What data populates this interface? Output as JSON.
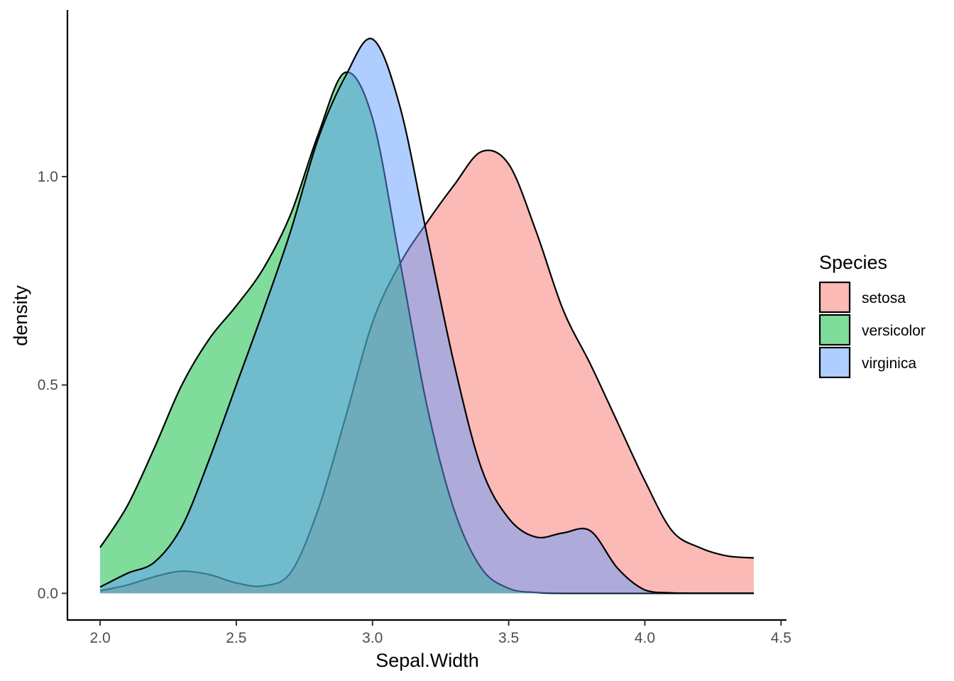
{
  "chart_data": {
    "type": "area",
    "subtype": "density",
    "title": "",
    "xlabel": "Sepal.Width",
    "ylabel": "density",
    "xlim": [
      1.88,
      4.52
    ],
    "ylim": [
      -0.064,
      1.4
    ],
    "x_ticks": [
      2.0,
      2.5,
      3.0,
      3.5,
      4.0,
      4.5
    ],
    "x_tick_labels": [
      "2.0",
      "2.5",
      "3.0",
      "3.5",
      "4.0",
      "4.5"
    ],
    "y_ticks": [
      0.0,
      0.5,
      1.0
    ],
    "y_tick_labels": [
      "0.0",
      "0.5",
      "1.0"
    ],
    "grid": false,
    "fill_opacity": 0.5,
    "legend": {
      "title": "Species",
      "position": "right"
    },
    "series": [
      {
        "name": "setosa",
        "color": "#F8766D",
        "points": [
          [
            2.0,
            0.006
          ],
          [
            2.1,
            0.02
          ],
          [
            2.2,
            0.04
          ],
          [
            2.3,
            0.053
          ],
          [
            2.4,
            0.045
          ],
          [
            2.5,
            0.025
          ],
          [
            2.6,
            0.018
          ],
          [
            2.7,
            0.05
          ],
          [
            2.8,
            0.2
          ],
          [
            2.9,
            0.42
          ],
          [
            3.0,
            0.65
          ],
          [
            3.1,
            0.79
          ],
          [
            3.2,
            0.89
          ],
          [
            3.3,
            0.98
          ],
          [
            3.4,
            1.06
          ],
          [
            3.5,
            1.03
          ],
          [
            3.6,
            0.87
          ],
          [
            3.7,
            0.68
          ],
          [
            3.8,
            0.55
          ],
          [
            3.9,
            0.41
          ],
          [
            4.0,
            0.27
          ],
          [
            4.1,
            0.15
          ],
          [
            4.2,
            0.11
          ],
          [
            4.3,
            0.09
          ],
          [
            4.4,
            0.085
          ]
        ]
      },
      {
        "name": "versicolor",
        "color": "#00BA38",
        "points": [
          [
            2.0,
            0.11
          ],
          [
            2.1,
            0.21
          ],
          [
            2.2,
            0.35
          ],
          [
            2.3,
            0.5
          ],
          [
            2.4,
            0.61
          ],
          [
            2.5,
            0.69
          ],
          [
            2.6,
            0.78
          ],
          [
            2.7,
            0.91
          ],
          [
            2.8,
            1.1
          ],
          [
            2.9,
            1.25
          ],
          [
            3.0,
            1.14
          ],
          [
            3.1,
            0.8
          ],
          [
            3.2,
            0.45
          ],
          [
            3.3,
            0.2
          ],
          [
            3.4,
            0.06
          ],
          [
            3.5,
            0.012
          ],
          [
            3.6,
            0.002
          ],
          [
            3.7,
            0.0
          ],
          [
            3.8,
            0.0
          ],
          [
            3.9,
            0.0
          ],
          [
            4.0,
            0.0
          ],
          [
            4.1,
            0.0
          ],
          [
            4.2,
            0.0
          ],
          [
            4.3,
            0.0
          ],
          [
            4.4,
            0.0
          ]
        ]
      },
      {
        "name": "virginica",
        "color": "#619CFF",
        "points": [
          [
            2.0,
            0.015
          ],
          [
            2.1,
            0.048
          ],
          [
            2.2,
            0.075
          ],
          [
            2.3,
            0.16
          ],
          [
            2.4,
            0.32
          ],
          [
            2.5,
            0.5
          ],
          [
            2.6,
            0.68
          ],
          [
            2.7,
            0.87
          ],
          [
            2.8,
            1.09
          ],
          [
            2.9,
            1.24
          ],
          [
            3.0,
            1.33
          ],
          [
            3.1,
            1.17
          ],
          [
            3.2,
            0.86
          ],
          [
            3.3,
            0.55
          ],
          [
            3.4,
            0.3
          ],
          [
            3.5,
            0.18
          ],
          [
            3.6,
            0.135
          ],
          [
            3.7,
            0.145
          ],
          [
            3.8,
            0.15
          ],
          [
            3.9,
            0.06
          ],
          [
            4.0,
            0.008
          ],
          [
            4.1,
            0.001
          ],
          [
            4.2,
            0.0
          ],
          [
            4.3,
            0.0
          ],
          [
            4.4,
            0.0
          ]
        ]
      }
    ]
  }
}
